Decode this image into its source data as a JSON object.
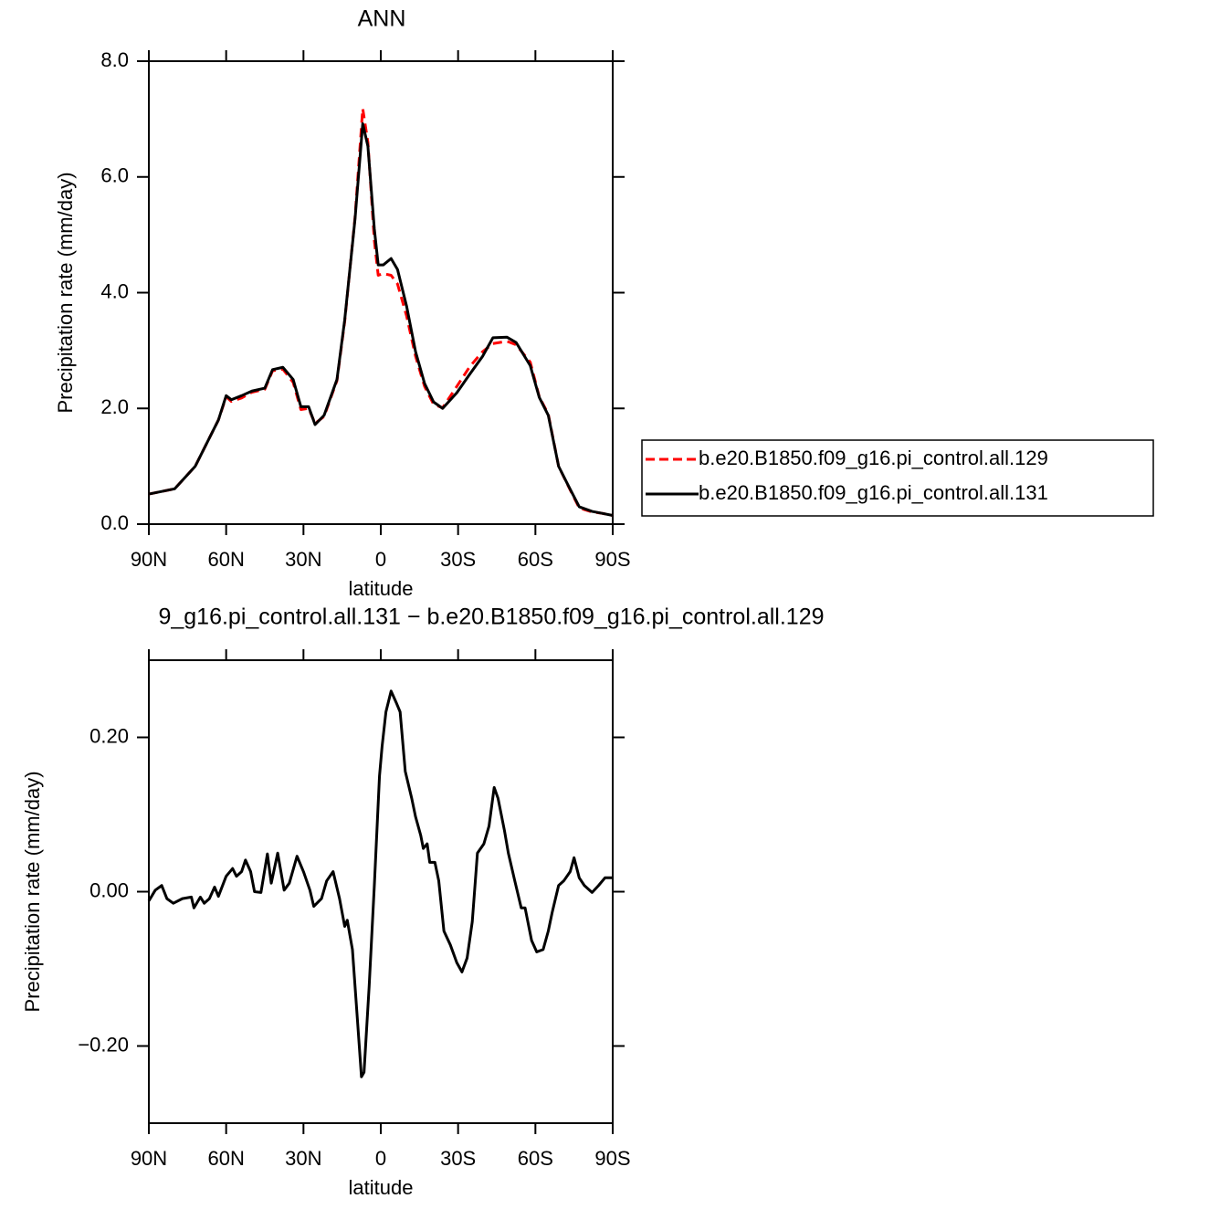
{
  "chart_data": [
    {
      "type": "line",
      "title": "ANN",
      "x_label": "latitude",
      "y_label": "Precipitation rate (mm/day)",
      "x": [
        90,
        80,
        72,
        63,
        60,
        58,
        54,
        50,
        45,
        42,
        38,
        34,
        31,
        28,
        25.5,
        22,
        17,
        14,
        10,
        7,
        5,
        2.5,
        1,
        -1,
        -4,
        -6.5,
        -10,
        -13.5,
        -17,
        -20.5,
        -24,
        -29.5,
        -34.5,
        -39.5,
        -43.5,
        -49,
        -52.5,
        -58,
        -61.5,
        -65,
        -69,
        -72.5,
        -77,
        -82,
        -85.5,
        -90
      ],
      "series": [
        {
          "name": "b.e20.B1850.f09_g16.pi_control.all.129",
          "color": "#ff0000",
          "style": "dashed",
          "values": [
            0.52,
            0.61,
            1.0,
            1.8,
            2.2,
            2.12,
            2.18,
            2.28,
            2.33,
            2.65,
            2.68,
            2.45,
            1.98,
            2.0,
            1.74,
            1.86,
            2.48,
            3.5,
            5.3,
            7.18,
            6.6,
            4.9,
            4.3,
            4.33,
            4.3,
            4.15,
            3.6,
            2.9,
            2.38,
            2.07,
            2.01,
            2.38,
            2.72,
            2.98,
            3.12,
            3.16,
            3.1,
            2.8,
            2.2,
            1.9,
            1.0,
            0.68,
            0.28,
            0.21,
            0.19,
            0.15
          ]
        },
        {
          "name": "b.e20.B1850.f09_g16.pi_control.all.131",
          "color": "#000000",
          "style": "solid",
          "values": [
            0.52,
            0.61,
            1.0,
            1.8,
            2.22,
            2.15,
            2.22,
            2.3,
            2.35,
            2.67,
            2.71,
            2.5,
            2.03,
            2.03,
            1.72,
            1.88,
            2.5,
            3.53,
            5.27,
            6.92,
            6.53,
            5.1,
            4.48,
            4.48,
            4.59,
            4.4,
            3.77,
            2.98,
            2.43,
            2.11,
            2.0,
            2.27,
            2.59,
            2.9,
            3.22,
            3.23,
            3.14,
            2.74,
            2.19,
            1.88,
            1.0,
            0.69,
            0.3,
            0.22,
            0.19,
            0.15
          ]
        }
      ],
      "xlim": [
        90,
        -90
      ],
      "xticks": [
        {
          "value": 90,
          "label": "90N"
        },
        {
          "value": 60,
          "label": "60N"
        },
        {
          "value": 30,
          "label": "30N"
        },
        0,
        {
          "value": -30,
          "label": "30S"
        },
        {
          "value": -60,
          "label": "60S"
        },
        {
          "value": -90,
          "label": "90S"
        }
      ],
      "ylim": [
        0,
        8
      ],
      "yticks": [
        {
          "value": 0,
          "label": "0.0"
        },
        {
          "value": 2,
          "label": "2.0"
        },
        {
          "value": 4,
          "label": "4.0"
        },
        {
          "value": 6,
          "label": "6.0"
        },
        {
          "value": 8,
          "label": "8.0"
        }
      ],
      "legend": "right"
    },
    {
      "type": "line",
      "title": "9_g16.pi_control.all.131 − b.e20.B1850.f09_g16.pi_control.all.129",
      "x_label": "latitude",
      "y_label": "Precipitation rate (mm/day)",
      "color": "#000000",
      "x": [
        90,
        87.5,
        85,
        83,
        80.5,
        77,
        73.5,
        72.5,
        70,
        68.5,
        66.5,
        64.5,
        63,
        60,
        57.5,
        56,
        54,
        52.5,
        50.5,
        49,
        46.5,
        44,
        42.5,
        40,
        37.5,
        35.5,
        32.5,
        30,
        27.5,
        26,
        23,
        21,
        18.5,
        16,
        14,
        13,
        11,
        9,
        7.5,
        6.5,
        4.5,
        2.5,
        0.5,
        -0.5,
        -2,
        -4,
        -6,
        -7.5,
        -9.5,
        -12,
        -13.5,
        -15.5,
        -16.5,
        -18,
        -19,
        -21,
        -22.5,
        -24.5,
        -27,
        -29.5,
        -31.5,
        -33.5,
        -35.5,
        -37.5,
        -40,
        -42,
        -44,
        -45.5,
        -48,
        -49.5,
        -52,
        -54.5,
        -56,
        -58.5,
        -60.5,
        -63,
        -65,
        -66.5,
        -69,
        -71,
        -73.5,
        -75,
        -77,
        -79,
        -82,
        -84.5,
        -87,
        -90
      ],
      "values": [
        -0.012,
        0.002,
        0.008,
        -0.009,
        -0.015,
        -0.009,
        -0.007,
        -0.021,
        -0.007,
        -0.015,
        -0.009,
        0.006,
        -0.006,
        0.02,
        0.03,
        0.02,
        0.026,
        0.041,
        0.026,
        0.0,
        -0.001,
        0.049,
        0.011,
        0.05,
        0.002,
        0.011,
        0.046,
        0.026,
        0.002,
        -0.019,
        -0.009,
        0.014,
        0.026,
        -0.009,
        -0.045,
        -0.037,
        -0.075,
        -0.169,
        -0.24,
        -0.234,
        -0.122,
        0.008,
        0.15,
        0.188,
        0.233,
        0.26,
        0.245,
        0.233,
        0.156,
        0.121,
        0.097,
        0.073,
        0.056,
        0.062,
        0.038,
        0.038,
        0.014,
        -0.051,
        -0.069,
        -0.092,
        -0.104,
        -0.086,
        -0.039,
        0.05,
        0.062,
        0.085,
        0.135,
        0.121,
        0.079,
        0.05,
        0.014,
        -0.021,
        -0.021,
        -0.063,
        -0.078,
        -0.075,
        -0.051,
        -0.027,
        0.008,
        0.014,
        0.026,
        0.044,
        0.018,
        0.008,
        -0.001,
        0.008,
        0.018,
        0.018
      ],
      "xlim": [
        90,
        -90
      ],
      "xticks": [
        {
          "value": 90,
          "label": "90N"
        },
        {
          "value": 60,
          "label": "60N"
        },
        {
          "value": 30,
          "label": "30N"
        },
        0,
        {
          "value": -30,
          "label": "30S"
        },
        {
          "value": -60,
          "label": "60S"
        },
        {
          "value": -90,
          "label": "90S"
        }
      ],
      "ylim": [
        -0.3,
        0.3
      ],
      "yticks": [
        {
          "value": -0.2,
          "label": "−0.20"
        },
        {
          "value": 0,
          "label": "0.00"
        },
        {
          "value": 0.2,
          "label": "0.20"
        }
      ]
    }
  ]
}
